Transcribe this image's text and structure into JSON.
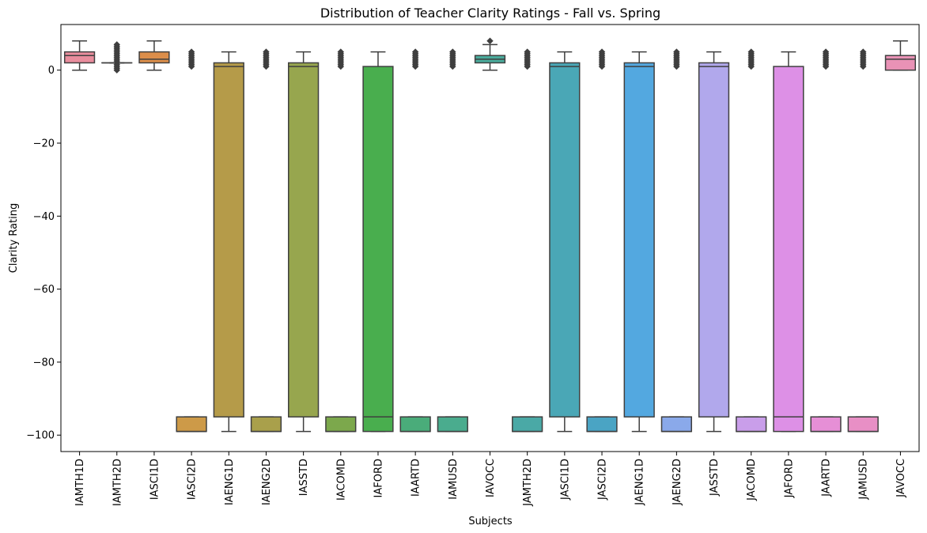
{
  "chart_data": {
    "type": "box",
    "title": "Distribution of Teacher Clarity Ratings - Fall vs. Spring",
    "xlabel": "Subjects",
    "ylabel": "Clarity Rating",
    "ylim": [
      -104.5,
      12.5
    ],
    "yticks": [
      0,
      -20,
      -40,
      -60,
      -80,
      -100
    ],
    "ytick_labels": [
      "0",
      "−20",
      "−40",
      "−60",
      "−80",
      "−100"
    ],
    "grid": false,
    "legend": "none",
    "categories": [
      "IAMTH1D",
      "IAMTH2D",
      "IASCI1D",
      "IASCI2D",
      "IAENG1D",
      "IAENG2D",
      "IASSTD",
      "IACOMD",
      "IAFORD",
      "IAARTD",
      "IAMUSD",
      "IAVOCC",
      "JAMTH2D",
      "JASCI1D",
      "JASCI2D",
      "JAENG1D",
      "JAENG2D",
      "JASSTD",
      "JACOMD",
      "JAFORD",
      "JAARTD",
      "JAMUSD",
      "JAVOCC"
    ],
    "boxes": [
      {
        "whisker_low": 0,
        "q1": 2,
        "median": 4,
        "q3": 5,
        "whisker_high": 8,
        "outliers_range": null,
        "color": "#e98d9d"
      },
      {
        "whisker_low": 2,
        "q1": 2,
        "median": 2,
        "q3": 2,
        "whisker_high": 2,
        "outliers_range": [
          0,
          7
        ],
        "color": "#e3955f"
      },
      {
        "whisker_low": 0,
        "q1": 2,
        "median": 3,
        "q3": 5,
        "whisker_high": 8,
        "outliers_range": null,
        "color": "#dc8e4a"
      },
      {
        "whisker_low": -99,
        "q1": -99,
        "median": -99,
        "q3": -95,
        "whisker_high": -95,
        "outliers_range": [
          1,
          5
        ],
        "color": "#cd9a48"
      },
      {
        "whisker_low": -99,
        "q1": -95,
        "median": 1,
        "q3": 2,
        "whisker_high": 5,
        "outliers_range": null,
        "color": "#b59b49"
      },
      {
        "whisker_low": -99,
        "q1": -99,
        "median": -99,
        "q3": -95,
        "whisker_high": -95,
        "outliers_range": [
          1,
          5
        ],
        "color": "#a9a04b"
      },
      {
        "whisker_low": -99,
        "q1": -95,
        "median": 1,
        "q3": 2,
        "whisker_high": 5,
        "outliers_range": null,
        "color": "#97a64e"
      },
      {
        "whisker_low": -99,
        "q1": -99,
        "median": -99,
        "q3": -95,
        "whisker_high": -95,
        "outliers_range": [
          1,
          5
        ],
        "color": "#7ca84c"
      },
      {
        "whisker_low": -99,
        "q1": -99,
        "median": -95,
        "q3": 1,
        "whisker_high": 5,
        "outliers_range": null,
        "color": "#49ae4e"
      },
      {
        "whisker_low": -99,
        "q1": -99,
        "median": -99,
        "q3": -95,
        "whisker_high": -95,
        "outliers_range": [
          1,
          5
        ],
        "color": "#4aac7a"
      },
      {
        "whisker_low": -99,
        "q1": -99,
        "median": -99,
        "q3": -95,
        "whisker_high": -95,
        "outliers_range": [
          1,
          5
        ],
        "color": "#4aac8e"
      },
      {
        "whisker_low": 0,
        "q1": 2,
        "median": 3,
        "q3": 4,
        "whisker_high": 7,
        "outliers_range": [
          8,
          8
        ],
        "color": "#4aab9c"
      },
      {
        "whisker_low": -99,
        "q1": -99,
        "median": -99,
        "q3": -95,
        "whisker_high": -95,
        "outliers_range": [
          1,
          5
        ],
        "color": "#4aa9a6"
      },
      {
        "whisker_low": -99,
        "q1": -95,
        "median": 1,
        "q3": 2,
        "whisker_high": 5,
        "outliers_range": null,
        "color": "#4aa7b6"
      },
      {
        "whisker_low": -99,
        "q1": -99,
        "median": -99,
        "q3": -95,
        "whisker_high": -95,
        "outliers_range": [
          1,
          5
        ],
        "color": "#4aa4c4"
      },
      {
        "whisker_low": -99,
        "q1": -95,
        "median": 1,
        "q3": 2,
        "whisker_high": 5,
        "outliers_range": null,
        "color": "#53a8e0"
      },
      {
        "whisker_low": -99,
        "q1": -99,
        "median": -99,
        "q3": -95,
        "whisker_high": -95,
        "outliers_range": [
          1,
          5
        ],
        "color": "#8aa9ea"
      },
      {
        "whisker_low": -99,
        "q1": -95,
        "median": 1,
        "q3": 2,
        "whisker_high": 5,
        "outliers_range": null,
        "color": "#b1a8ec"
      },
      {
        "whisker_low": -99,
        "q1": -99,
        "median": -99,
        "q3": -95,
        "whisker_high": -95,
        "outliers_range": [
          1,
          5
        ],
        "color": "#c99eea"
      },
      {
        "whisker_low": -99,
        "q1": -99,
        "median": -95,
        "q3": 1,
        "whisker_high": 5,
        "outliers_range": null,
        "color": "#dd90e6"
      },
      {
        "whisker_low": -99,
        "q1": -99,
        "median": -99,
        "q3": -95,
        "whisker_high": -95,
        "outliers_range": [
          1,
          5
        ],
        "color": "#e68fd6"
      },
      {
        "whisker_low": -99,
        "q1": -99,
        "median": -99,
        "q3": -95,
        "whisker_high": -95,
        "outliers_range": [
          1,
          5
        ],
        "color": "#e88fc5"
      },
      {
        "whisker_low": 0,
        "q1": 0,
        "median": 3,
        "q3": 4,
        "whisker_high": 8,
        "outliers_range": null,
        "color": "#e992b6"
      }
    ]
  }
}
